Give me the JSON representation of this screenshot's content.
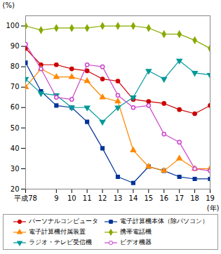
{
  "chart_data": {
    "type": "line",
    "x": [
      7,
      8,
      9,
      10,
      11,
      12,
      13,
      14,
      15,
      16,
      17,
      18,
      19
    ],
    "xlabel": "(年)",
    "ylabel": "(%)",
    "xlim": [
      7,
      19
    ],
    "xticks": [
      {
        "value": 7,
        "label": "平成78"
      },
      9,
      10,
      11,
      12,
      13,
      14,
      15,
      16,
      17,
      18,
      19
    ],
    "ylim": [
      20,
      105
    ],
    "yticks": [
      20,
      30,
      40,
      50,
      60,
      70,
      80,
      90,
      100
    ],
    "grid": false,
    "legend": "bottom",
    "series": [
      {
        "name": "パーソナルコンピュータ",
        "color": "#cc0000",
        "marker": "circle",
        "values": [
          89,
          81,
          81,
          79,
          78,
          74,
          73,
          64,
          63,
          62,
          59,
          57,
          61
        ]
      },
      {
        "name": "電子計算機本体（除パソコン）",
        "color": "#003399",
        "marker": "square",
        "values": [
          82,
          68,
          61,
          60,
          53,
          40,
          26,
          23,
          31,
          29,
          26,
          25,
          25
        ]
      },
      {
        "name": "電子計算機付属装置",
        "color": "#ff8800",
        "marker": "triangle",
        "values": [
          70,
          79,
          75,
          75,
          73,
          65,
          63,
          39,
          31,
          29,
          35,
          30,
          30
        ]
      },
      {
        "name": "携帯電話機",
        "color": "#88aa00",
        "marker": "diamond",
        "values": [
          100,
          98,
          99,
          99,
          99,
          100,
          100,
          100,
          99,
          96,
          96,
          93,
          89
        ]
      },
      {
        "name": "ラジオ・テレビ受信機",
        "color": "#009999",
        "marker": "triangle-down",
        "values": [
          74,
          67,
          66,
          60,
          60,
          53,
          60,
          65,
          78,
          74,
          83,
          77,
          76
        ]
      },
      {
        "name": "ビデオ機器",
        "color": "#cc44cc",
        "marker": "open-circle",
        "values": [
          91,
          79,
          65,
          64,
          81,
          80,
          66,
          60,
          61,
          47,
          43,
          30,
          29
        ]
      }
    ]
  }
}
